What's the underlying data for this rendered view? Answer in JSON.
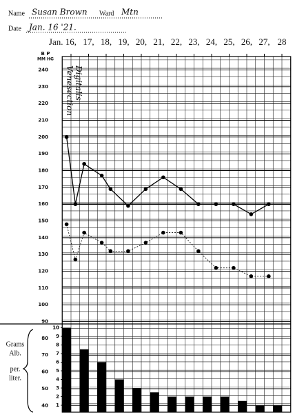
{
  "header": {
    "name_label": "Name",
    "name": "Susan Brown",
    "ward_label": "Ward",
    "ward": "Mtn",
    "date_label": "Date",
    "date": "Jan. 16 '21."
  },
  "chart_data": [
    {
      "type": "line",
      "y_label": "B P",
      "y_unit": "MM HG",
      "annotations": [
        "Venesection",
        "Digitalis"
      ],
      "xlim": [
        15.5,
        28.5
      ],
      "xticks": [
        {
          "value": 16,
          "label": "Jan. 16,"
        },
        {
          "value": 17,
          "label": "17,"
        },
        {
          "value": 18,
          "label": "18,"
        },
        {
          "value": 19,
          "label": "19,"
        },
        {
          "value": 20,
          "label": "20,"
        },
        {
          "value": 21,
          "label": "21,"
        },
        {
          "value": 22,
          "label": "22,"
        },
        {
          "value": 23,
          "label": "23,"
        },
        {
          "value": 24,
          "label": "24,"
        },
        {
          "value": 25,
          "label": "25,"
        },
        {
          "value": 26,
          "label": "26,"
        },
        {
          "value": 27,
          "label": "27,"
        },
        28
      ],
      "ylim": [
        36,
        248
      ],
      "yticks": [
        40,
        50,
        60,
        70,
        80,
        90,
        100,
        110,
        120,
        130,
        140,
        150,
        160,
        170,
        180,
        190,
        200,
        210,
        220,
        230,
        240
      ],
      "grid": true,
      "series": [
        {
          "color": "#000000",
          "style": "solid",
          "x": [
            15.75,
            16.25,
            16.75,
            17.75,
            18.25,
            19.25,
            20.25,
            21.25,
            22.25,
            23.25,
            24.25,
            25.25,
            26.25,
            27.25
          ],
          "values": [
            200,
            160,
            184,
            177,
            169,
            159,
            169,
            176,
            169,
            160,
            160,
            160,
            154,
            160
          ]
        },
        {
          "color": "#000000",
          "style": "dotted",
          "x": [
            15.75,
            16.25,
            16.75,
            17.75,
            18.25,
            19.25,
            20.25,
            21.25,
            22.25,
            23.25,
            24.25,
            25.25,
            26.25,
            27.25
          ],
          "values": [
            148,
            127,
            143,
            137,
            132,
            132,
            137,
            143,
            143,
            132,
            122,
            122,
            117,
            117
          ]
        }
      ]
    },
    {
      "type": "bar",
      "y_label": [
        "Grams",
        "Alb.",
        "per.",
        "liter."
      ],
      "x": [
        15.75,
        16.75,
        17.75,
        18.75,
        19.75,
        20.75,
        21.75,
        22.75,
        23.75,
        24.75,
        25.75,
        26.75,
        27.75
      ],
      "values": [
        10,
        7.5,
        6,
        4,
        3,
        2.5,
        2,
        2,
        2,
        2,
        1.5,
        1,
        1
      ],
      "color": "#000000",
      "ylim": [
        0.2,
        10.2
      ],
      "yticks": [
        1,
        2,
        3,
        4,
        5,
        6,
        7,
        8,
        9,
        10
      ]
    }
  ]
}
